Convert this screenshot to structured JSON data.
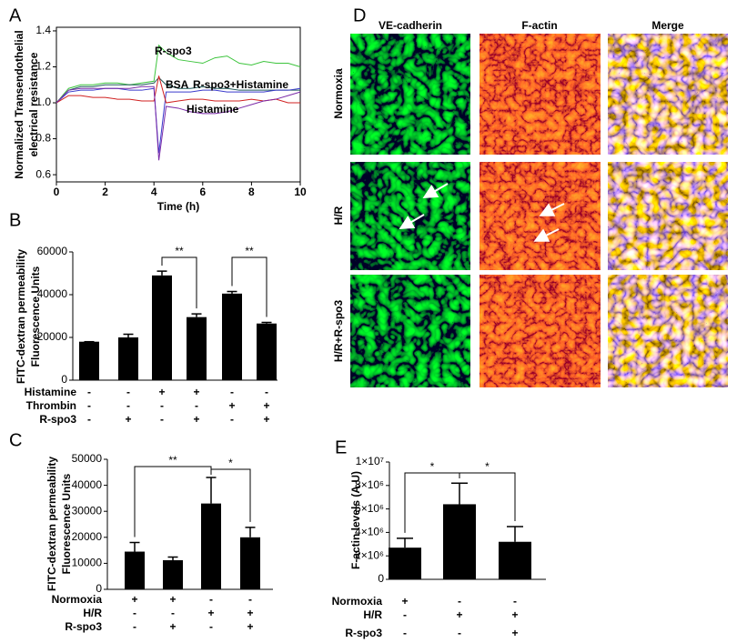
{
  "chart_data": [
    {
      "type": "line",
      "panel_label": "A",
      "xlabel": "Time (h)",
      "ylabel": [
        "Normalized Transendothelial",
        "electrical resistance"
      ],
      "x": [
        0,
        0.5,
        1,
        1.5,
        2,
        2.5,
        3,
        3.5,
        4,
        4.2,
        4.5,
        5,
        5.5,
        6,
        6.5,
        7,
        7.5,
        8,
        8.5,
        9,
        9.5,
        10
      ],
      "series": [
        {
          "name": "R-spo3",
          "color": "#3cc43c",
          "values": [
            1.0,
            1.08,
            1.1,
            1.1,
            1.11,
            1.11,
            1.1,
            1.11,
            1.12,
            1.32,
            1.28,
            1.24,
            1.23,
            1.22,
            1.25,
            1.26,
            1.22,
            1.21,
            1.23,
            1.22,
            1.22,
            1.2
          ]
        },
        {
          "name": "BSA",
          "color": "#1f5a5a",
          "values": [
            1.0,
            1.07,
            1.09,
            1.09,
            1.1,
            1.1,
            1.1,
            1.1,
            1.11,
            1.14,
            1.1,
            1.08,
            1.08,
            1.09,
            1.08,
            1.08,
            1.07,
            1.07,
            1.07,
            1.07,
            1.07,
            1.07
          ]
        },
        {
          "name": "R-spo3+Histamine",
          "color": "#3a3acc",
          "values": [
            1.0,
            1.06,
            1.07,
            1.07,
            1.08,
            1.08,
            1.07,
            1.07,
            1.08,
            0.72,
            1.06,
            1.06,
            1.06,
            1.07,
            1.07,
            1.06,
            1.06,
            1.06,
            1.06,
            1.07,
            1.07,
            1.08
          ]
        },
        {
          "color": "#d02020",
          "values": [
            1.0,
            1.04,
            1.04,
            1.03,
            1.03,
            1.02,
            1.02,
            1.01,
            1.01,
            1.15,
            1.0,
            1.01,
            1.02,
            1.02,
            1.01,
            1.01,
            1.01,
            1.02,
            1.01,
            1.02,
            1.0,
            1.0
          ]
        },
        {
          "name": "Histamine",
          "color": "#7a2aa8",
          "values": [
            1.0,
            1.07,
            1.08,
            1.08,
            1.08,
            1.08,
            1.08,
            1.09,
            1.09,
            0.68,
            0.98,
            0.97,
            0.95,
            0.94,
            0.94,
            0.95,
            0.97,
            0.99,
            1.01,
            1.02,
            1.04,
            1.06
          ]
        }
      ],
      "xlim": [
        0,
        10
      ],
      "xticks": [
        0,
        2,
        4,
        6,
        8,
        10
      ],
      "ylim": [
        0.56,
        1.42
      ],
      "yticks": [
        0.6,
        0.8,
        {
          "value": 1,
          "label": "1.0"
        },
        1.2,
        1.4
      ]
    },
    {
      "type": "bar",
      "panel_label": "B",
      "ylabel": [
        "FITC-dextran permeability",
        "Fluorescence Units"
      ],
      "color": "#000000",
      "values": [
        18000,
        20000,
        49000,
        29500,
        40500,
        26500
      ],
      "errors": [
        0,
        1500,
        2000,
        1500,
        1000,
        500
      ],
      "ylim": [
        0,
        60000
      ],
      "yticks": [
        0,
        20000,
        40000,
        60000
      ],
      "conditions": [
        {
          "name": "Histamine",
          "signs": [
            "-",
            "-",
            "+",
            "+",
            "-",
            "-"
          ]
        },
        {
          "name": "Thrombin",
          "signs": [
            "-",
            "-",
            "-",
            "-",
            "+",
            "+"
          ]
        },
        {
          "name": "R-spo3",
          "signs": [
            "-",
            "+",
            "-",
            "+",
            "-",
            "+"
          ]
        }
      ],
      "significance": [
        {
          "label": "**",
          "groups": [
            2,
            3
          ]
        },
        {
          "label": "**",
          "groups": [
            4,
            5
          ]
        }
      ]
    },
    {
      "type": "bar",
      "panel_label": "C",
      "ylabel": [
        "FITC-dextran permeability",
        "Fluorescence Units"
      ],
      "color": "#000000",
      "values": [
        14500,
        11200,
        33000,
        20000
      ],
      "errors": [
        3500,
        1200,
        10000,
        3800
      ],
      "ylim": [
        0,
        50000
      ],
      "yticks": [
        0,
        10000,
        20000,
        30000,
        40000,
        50000
      ],
      "conditions": [
        {
          "name": "Normoxia",
          "signs": [
            "+",
            "+",
            "-",
            "-"
          ]
        },
        {
          "name": "H/R",
          "signs": [
            "-",
            "-",
            "+",
            "+"
          ]
        },
        {
          "name": "R-spo3",
          "signs": [
            "-",
            "+",
            "-",
            "+"
          ]
        }
      ],
      "significance": [
        {
          "label": "**",
          "groups": [
            0,
            2
          ]
        },
        {
          "label": "*",
          "groups": [
            2,
            3
          ]
        }
      ]
    },
    {
      "type": "bar",
      "panel_label": "E",
      "ylabel": [
        "F-actin levels (A.U)"
      ],
      "color": "#000000",
      "values": [
        2700000,
        6400000,
        3200000
      ],
      "errors": [
        800000,
        1800000,
        1300000
      ],
      "ylim": [
        0,
        10000000
      ],
      "yticks": [
        0,
        {
          "value": 2000000,
          "label": "2×10⁶"
        },
        {
          "value": 4000000,
          "label": "4×10⁶"
        },
        {
          "value": 6000000,
          "label": "6×10⁶"
        },
        {
          "value": 8000000,
          "label": "8×10⁶"
        },
        {
          "value": 10000000,
          "label": "1×10⁷"
        }
      ],
      "conditions": [
        {
          "name": "Normoxia",
          "signs": [
            "+",
            "-",
            "-"
          ]
        },
        {
          "name": "H/R",
          "signs": [
            "-",
            "+",
            "+"
          ]
        },
        {
          "name": "R-spo3",
          "signs": [
            "-",
            "-",
            "+"
          ]
        }
      ],
      "significance": [
        {
          "label": "*",
          "groups": [
            0,
            1
          ]
        },
        {
          "label": "*",
          "groups": [
            1,
            2
          ]
        }
      ]
    }
  ],
  "micrograph": {
    "panel_label": "D",
    "columns": [
      "VE-cadherin",
      "F-actin",
      "Merge"
    ],
    "rows": [
      "Normoxia",
      "H/R",
      "H/R+R-spo3"
    ]
  }
}
